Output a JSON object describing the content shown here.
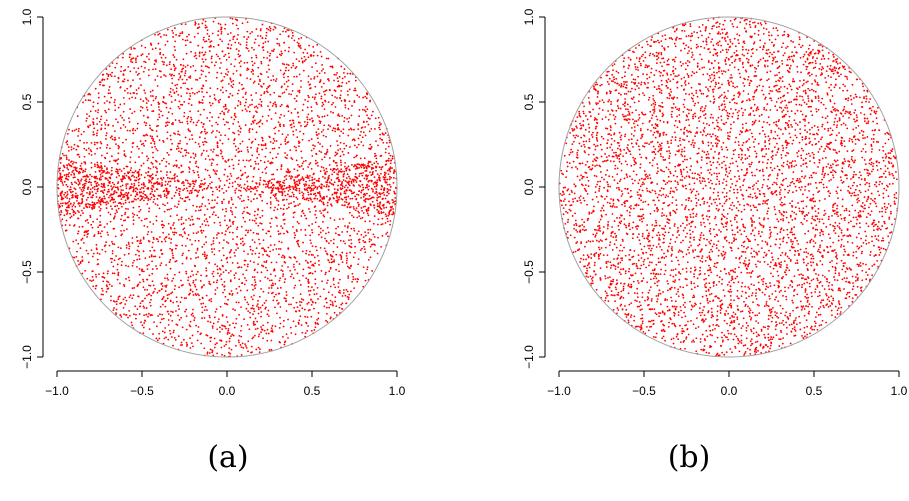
{
  "chart_data": [
    {
      "type": "scatter",
      "caption": "(a)",
      "title": "",
      "xlabel": "",
      "ylabel": "",
      "xlim": [
        -1.0,
        1.0
      ],
      "ylim": [
        -1.0,
        1.0
      ],
      "xticks": [
        "-1.0",
        "-0.5",
        "0.0",
        "0.5",
        "1.0"
      ],
      "yticks": [
        "-1.0",
        "-0.5",
        "0.0",
        "0.5",
        "1.0"
      ],
      "boundary": {
        "shape": "circle",
        "center": [
          0,
          0
        ],
        "radius": 1.0
      },
      "point_color": "#ff0000",
      "circle_color": "#a0a0a0",
      "grid": false,
      "legend": "none",
      "approx_point_count": 5000,
      "distribution": "quasi-uniform points filling the unit disk, denser along horizontal rays near y=0"
    },
    {
      "type": "scatter",
      "caption": "(b)",
      "title": "",
      "xlabel": "",
      "ylabel": "",
      "xlim": [
        -1.0,
        1.0
      ],
      "ylim": [
        -1.0,
        1.0
      ],
      "xticks": [
        "-1.0",
        "-0.5",
        "0.0",
        "0.5",
        "1.0"
      ],
      "yticks": [
        "-1.0",
        "-0.5",
        "0.0",
        "0.5",
        "1.0"
      ],
      "boundary": {
        "shape": "circle",
        "center": [
          0,
          0
        ],
        "radius": 1.0
      },
      "point_color": "#ff0000",
      "circle_color": "#a0a0a0",
      "grid": false,
      "legend": "none",
      "approx_point_count": 5000,
      "distribution": "quasi-uniform points filling the unit disk"
    }
  ]
}
